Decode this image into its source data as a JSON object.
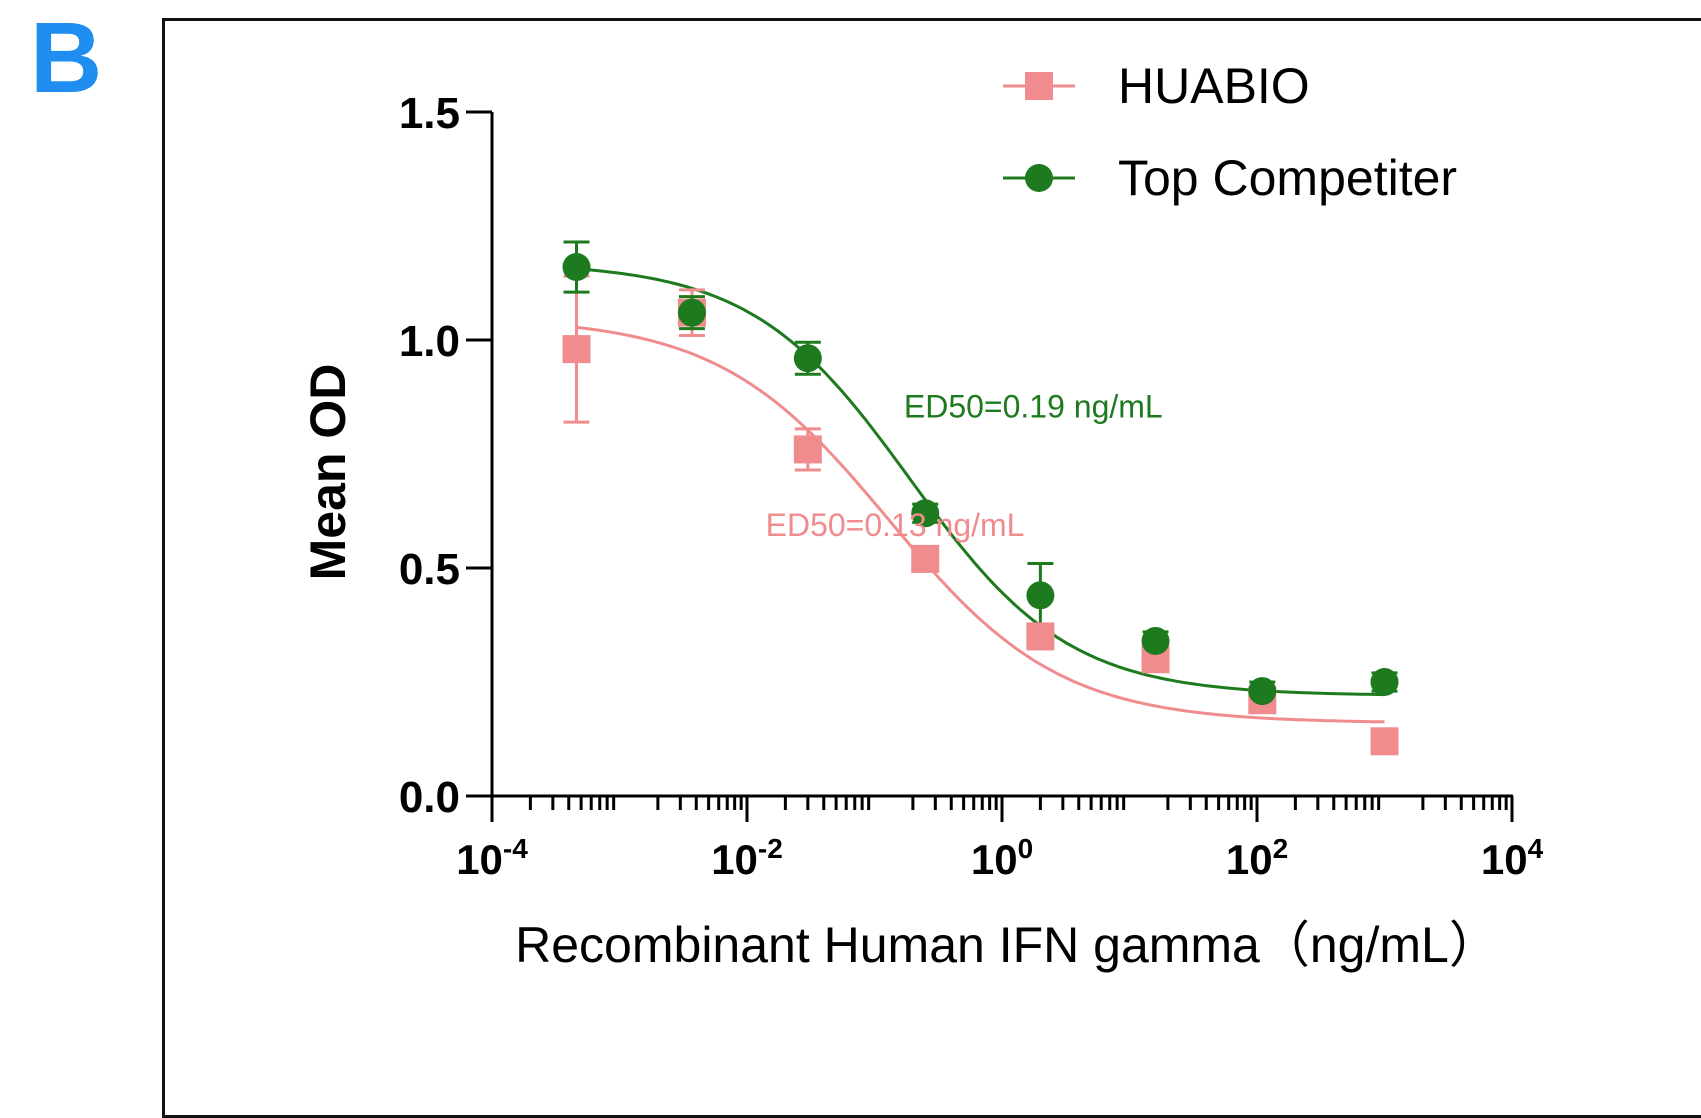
{
  "panel_label": "B",
  "colors": {
    "huabio": "#f08c8e",
    "competitor": "#1e7a1e",
    "axis": "#000000",
    "panel_label": "#1f8ef0"
  },
  "chart_data": {
    "type": "scatter",
    "title": "",
    "xlabel": "Recombinant Human IFN gamma（ng/mL）",
    "ylabel": "Mean OD",
    "xscale": "log",
    "xlim": [
      0.0001,
      10000
    ],
    "ylim": [
      0,
      1.5
    ],
    "x_ticks": [
      {
        "value": 0.0001,
        "base": "10",
        "exp": "-4"
      },
      {
        "value": 0.01,
        "base": "10",
        "exp": "-2"
      },
      {
        "value": 1,
        "base": "10",
        "exp": "0"
      },
      {
        "value": 100,
        "base": "10",
        "exp": "2"
      },
      {
        "value": 10000,
        "base": "10",
        "exp": "4"
      }
    ],
    "y_ticks": [
      {
        "value": 0,
        "label": "0.0"
      },
      {
        "value": 0.5,
        "label": "0.5"
      },
      {
        "value": 1.0,
        "label": "1.0"
      },
      {
        "value": 1.5,
        "label": "1.5"
      }
    ],
    "legend_position": "top-right",
    "series": [
      {
        "name": "HUABIO",
        "marker": "square",
        "x": [
          0.00046,
          0.0037,
          0.03,
          0.25,
          2.0,
          16,
          110,
          1000
        ],
        "y": [
          0.98,
          1.06,
          0.76,
          0.52,
          0.35,
          0.3,
          0.21,
          0.12
        ],
        "error": [
          0.16,
          0.05,
          0.045,
          0.02,
          0.02,
          0.02,
          0.02,
          0.01
        ],
        "fit": {
          "top": 1.05,
          "bottom": 0.16,
          "ed50": 0.13,
          "hill": 0.65
        },
        "annotation": "ED50=0.13 ng/mL",
        "annotation_position": {
          "x": 0.014,
          "y": 0.57
        }
      },
      {
        "name": "Top Competiter",
        "marker": "circle",
        "x": [
          0.00046,
          0.0037,
          0.03,
          0.25,
          2.0,
          16,
          110,
          1000
        ],
        "y": [
          1.16,
          1.06,
          0.96,
          0.62,
          0.44,
          0.34,
          0.23,
          0.25
        ],
        "error": [
          0.055,
          0.035,
          0.035,
          0.02,
          0.07,
          0.02,
          0.02,
          0.02
        ],
        "fit": {
          "top": 1.17,
          "bottom": 0.22,
          "ed50": 0.19,
          "hill": 0.7
        },
        "annotation": "ED50=0.19 ng/mL",
        "annotation_position": {
          "x": 0.17,
          "y": 0.83
        }
      }
    ]
  }
}
